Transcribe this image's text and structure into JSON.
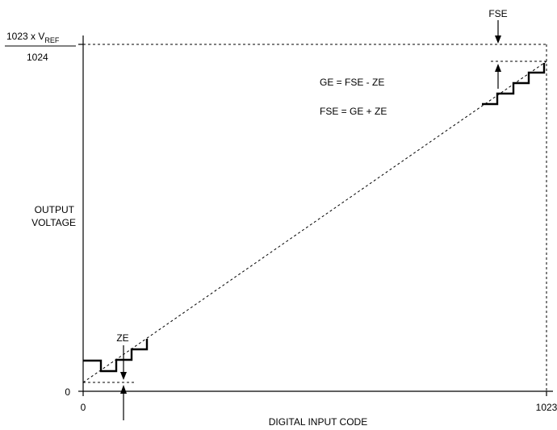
{
  "axes": {
    "x_label": "DIGITAL INPUT CODE",
    "y_label_line1": "OUTPUT",
    "y_label_line2": "VOLTAGE",
    "x_tick_start": "0",
    "x_tick_end": "1023",
    "y_tick_zero": "0",
    "y_full_scale_numerator": "1023 x V",
    "y_full_scale_subscript": "REF",
    "y_full_scale_denominator": "1024"
  },
  "annotations": {
    "fse": "FSE",
    "ze": "ZE",
    "equation_ge": "GE = FSE - ZE",
    "equation_fse": "FSE = GE + ZE"
  }
}
